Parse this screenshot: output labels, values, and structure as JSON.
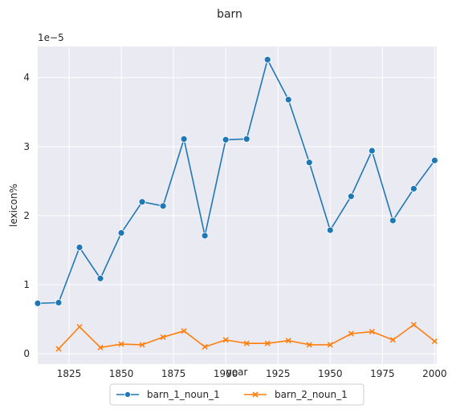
{
  "chart_data": {
    "type": "line",
    "title": "barn",
    "xlabel": "year",
    "ylabel": "lexicon%",
    "y_offset_label": "1e−5",
    "xlim": [
      1810,
      2001
    ],
    "ylim": [
      -0.15,
      4.45
    ],
    "x_ticks": [
      1825,
      1850,
      1875,
      1900,
      1925,
      1950,
      1975,
      2000
    ],
    "y_ticks": [
      0,
      1,
      2,
      3,
      4
    ],
    "grid": true,
    "legend_position": "bottom-center",
    "series": [
      {
        "name": "barn_1_noun_1",
        "color": "#1f77b4",
        "marker": "circle",
        "x": [
          1810,
          1820,
          1830,
          1840,
          1850,
          1860,
          1870,
          1880,
          1890,
          1900,
          1910,
          1920,
          1930,
          1940,
          1950,
          1960,
          1970,
          1980,
          1990,
          2000
        ],
        "y": [
          0.73,
          0.74,
          1.54,
          1.09,
          1.75,
          2.2,
          2.14,
          3.11,
          1.71,
          3.1,
          3.11,
          4.26,
          3.68,
          2.77,
          1.79,
          2.28,
          2.94,
          1.93,
          2.39,
          2.8
        ]
      },
      {
        "name": "barn_2_noun_1",
        "color": "#ff7f0e",
        "marker": "x",
        "x": [
          1820,
          1830,
          1840,
          1850,
          1860,
          1870,
          1880,
          1890,
          1900,
          1910,
          1920,
          1930,
          1940,
          1950,
          1960,
          1970,
          1980,
          1990,
          2000
        ],
        "y": [
          0.07,
          0.39,
          0.09,
          0.14,
          0.13,
          0.24,
          0.33,
          0.1,
          0.2,
          0.15,
          0.15,
          0.19,
          0.13,
          0.13,
          0.29,
          0.32,
          0.2,
          0.42,
          0.18
        ]
      }
    ]
  }
}
